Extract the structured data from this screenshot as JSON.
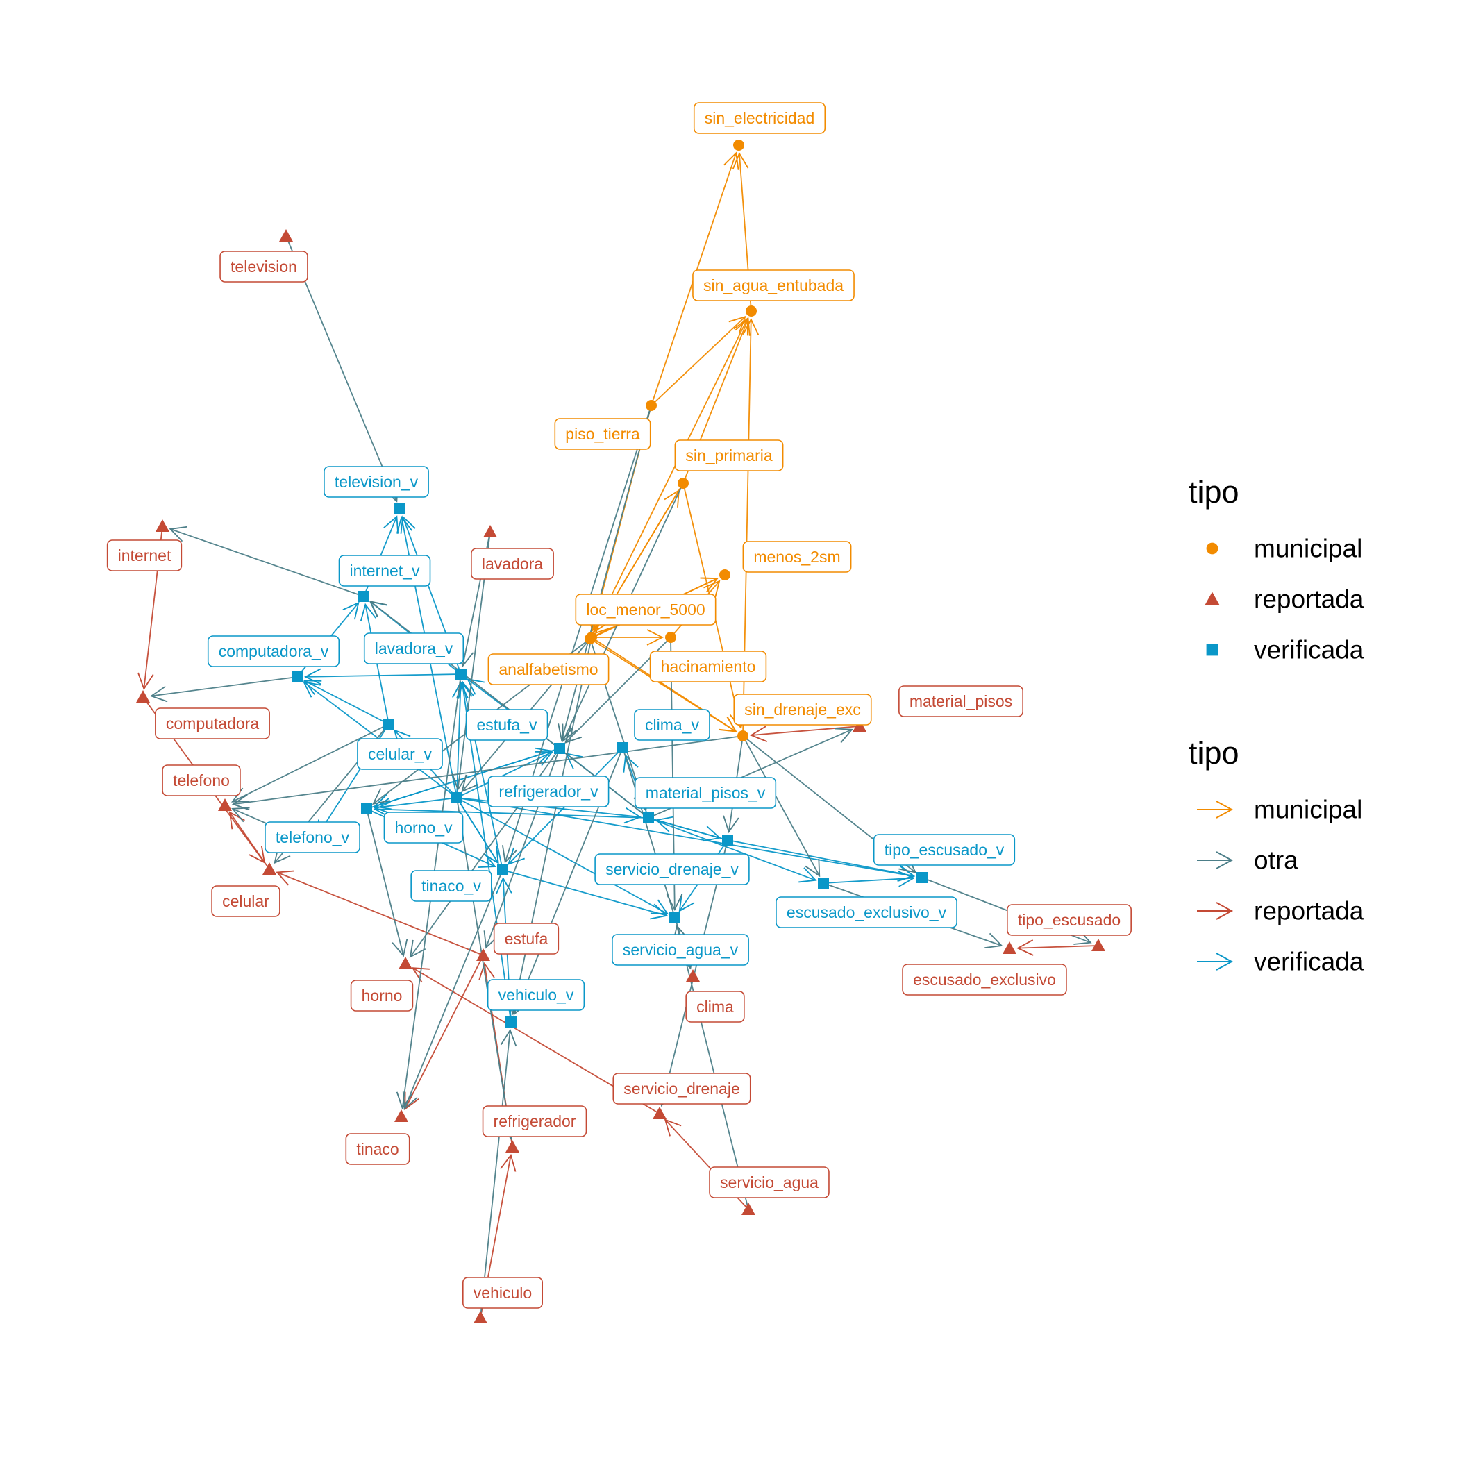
{
  "colors": {
    "municipal": "#F28B00",
    "reportada": "#C44A35",
    "verificada": "#0A97C8",
    "otra": "#4C7E88"
  },
  "legend": {
    "node_title": "tipo",
    "node_items": [
      {
        "label": "municipal",
        "key": "municipal",
        "shape": "circle"
      },
      {
        "label": "reportada",
        "key": "reportada",
        "shape": "triangle"
      },
      {
        "label": "verificada",
        "key": "verificada",
        "shape": "square"
      }
    ],
    "edge_title": "tipo",
    "edge_items": [
      {
        "label": "municipal",
        "key": "municipal"
      },
      {
        "label": "otra",
        "key": "otra"
      },
      {
        "label": "reportada",
        "key": "reportada"
      },
      {
        "label": "verificada",
        "key": "verificada"
      }
    ]
  },
  "nodes": [
    {
      "id": "sin_electricidad",
      "label": "sin_electricidad",
      "tipo": "municipal"
    },
    {
      "id": "sin_agua_entubada",
      "label": "sin_agua_entubada",
      "tipo": "municipal"
    },
    {
      "id": "piso_tierra",
      "label": "piso_tierra",
      "tipo": "municipal"
    },
    {
      "id": "sin_primaria",
      "label": "sin_primaria",
      "tipo": "municipal"
    },
    {
      "id": "menos_2sm",
      "label": "menos_2sm",
      "tipo": "municipal"
    },
    {
      "id": "loc_menor_5000",
      "label": "loc_menor_5000",
      "tipo": "municipal"
    },
    {
      "id": "analfabetismo",
      "label": "analfabetismo",
      "tipo": "municipal"
    },
    {
      "id": "hacinamiento",
      "label": "hacinamiento",
      "tipo": "municipal"
    },
    {
      "id": "sin_drenaje_exc",
      "label": "sin_drenaje_exc",
      "tipo": "municipal"
    },
    {
      "id": "television",
      "label": "television",
      "tipo": "reportada"
    },
    {
      "id": "internet",
      "label": "internet",
      "tipo": "reportada"
    },
    {
      "id": "lavadora",
      "label": "lavadora",
      "tipo": "reportada"
    },
    {
      "id": "computadora",
      "label": "computadora",
      "tipo": "reportada"
    },
    {
      "id": "telefono",
      "label": "telefono",
      "tipo": "reportada"
    },
    {
      "id": "celular",
      "label": "celular",
      "tipo": "reportada"
    },
    {
      "id": "horno",
      "label": "horno",
      "tipo": "reportada"
    },
    {
      "id": "estufa",
      "label": "estufa",
      "tipo": "reportada"
    },
    {
      "id": "tinaco",
      "label": "tinaco",
      "tipo": "reportada"
    },
    {
      "id": "refrigerador",
      "label": "refrigerador",
      "tipo": "reportada"
    },
    {
      "id": "vehiculo",
      "label": "vehiculo",
      "tipo": "reportada"
    },
    {
      "id": "clima",
      "label": "clima",
      "tipo": "reportada"
    },
    {
      "id": "servicio_drenaje",
      "label": "servicio_drenaje",
      "tipo": "reportada"
    },
    {
      "id": "servicio_agua",
      "label": "servicio_agua",
      "tipo": "reportada"
    },
    {
      "id": "material_pisos",
      "label": "material_pisos",
      "tipo": "reportada"
    },
    {
      "id": "tipo_escusado",
      "label": "tipo_escusado",
      "tipo": "reportada"
    },
    {
      "id": "escusado_exclusivo",
      "label": "escusado_exclusivo",
      "tipo": "reportada"
    },
    {
      "id": "television_v",
      "label": "television_v",
      "tipo": "verificada"
    },
    {
      "id": "internet_v",
      "label": "internet_v",
      "tipo": "verificada"
    },
    {
      "id": "computadora_v",
      "label": "computadora_v",
      "tipo": "verificada"
    },
    {
      "id": "lavadora_v",
      "label": "lavadora_v",
      "tipo": "verificada"
    },
    {
      "id": "celular_v",
      "label": "celular_v",
      "tipo": "verificada"
    },
    {
      "id": "estufa_v",
      "label": "estufa_v",
      "tipo": "verificada"
    },
    {
      "id": "clima_v",
      "label": "clima_v",
      "tipo": "verificada"
    },
    {
      "id": "refrigerador_v",
      "label": "refrigerador_v",
      "tipo": "verificada"
    },
    {
      "id": "material_pisos_v",
      "label": "material_pisos_v",
      "tipo": "verificada"
    },
    {
      "id": "horno_v",
      "label": "horno_v",
      "tipo": "verificada"
    },
    {
      "id": "telefono_v",
      "label": "telefono_v",
      "tipo": "verificada"
    },
    {
      "id": "tinaco_v",
      "label": "tinaco_v",
      "tipo": "verificada"
    },
    {
      "id": "servicio_drenaje_v",
      "label": "servicio_drenaje_v",
      "tipo": "verificada"
    },
    {
      "id": "servicio_agua_v",
      "label": "servicio_agua_v",
      "tipo": "verificada"
    },
    {
      "id": "tipo_escusado_v",
      "label": "tipo_escusado_v",
      "tipo": "verificada"
    },
    {
      "id": "escusado_exclusivo_v",
      "label": "escusado_exclusivo_v",
      "tipo": "verificada"
    },
    {
      "id": "vehiculo_v",
      "label": "vehiculo_v",
      "tipo": "verificada"
    }
  ],
  "edges": [
    {
      "from": "sin_agua_entubada",
      "to": "sin_electricidad",
      "tipo": "municipal"
    },
    {
      "from": "piso_tierra",
      "to": "sin_electricidad",
      "tipo": "municipal"
    },
    {
      "from": "piso_tierra",
      "to": "sin_agua_entubada",
      "tipo": "municipal"
    },
    {
      "from": "sin_primaria",
      "to": "sin_agua_entubada",
      "tipo": "municipal"
    },
    {
      "from": "sin_drenaje_exc",
      "to": "sin_agua_entubada",
      "tipo": "municipal"
    },
    {
      "from": "loc_menor_5000",
      "to": "sin_agua_entubada",
      "tipo": "municipal"
    },
    {
      "from": "piso_tierra",
      "to": "loc_menor_5000",
      "tipo": "municipal"
    },
    {
      "from": "sin_primaria",
      "to": "loc_menor_5000",
      "tipo": "municipal"
    },
    {
      "from": "loc_menor_5000",
      "to": "sin_primaria",
      "tipo": "municipal"
    },
    {
      "from": "loc_menor_5000",
      "to": "menos_2sm",
      "tipo": "municipal"
    },
    {
      "from": "analfabetismo",
      "to": "loc_menor_5000",
      "tipo": "municipal"
    },
    {
      "from": "analfabetismo",
      "to": "menos_2sm",
      "tipo": "municipal"
    },
    {
      "from": "hacinamiento",
      "to": "menos_2sm",
      "tipo": "municipal"
    },
    {
      "from": "analfabetismo",
      "to": "hacinamiento",
      "tipo": "municipal"
    },
    {
      "from": "analfabetismo",
      "to": "sin_drenaje_exc",
      "tipo": "municipal"
    },
    {
      "from": "sin_primaria",
      "to": "sin_drenaje_exc",
      "tipo": "municipal"
    },
    {
      "from": "loc_menor_5000",
      "to": "sin_drenaje_exc",
      "tipo": "municipal"
    },
    {
      "from": "internet",
      "to": "computadora",
      "tipo": "reportada"
    },
    {
      "from": "computadora",
      "to": "celular",
      "tipo": "reportada"
    },
    {
      "from": "celular",
      "to": "telefono",
      "tipo": "reportada"
    },
    {
      "from": "estufa",
      "to": "celular",
      "tipo": "reportada"
    },
    {
      "from": "estufa",
      "to": "tinaco",
      "tipo": "reportada"
    },
    {
      "from": "refrigerador",
      "to": "estufa",
      "tipo": "reportada"
    },
    {
      "from": "vehiculo",
      "to": "refrigerador",
      "tipo": "reportada"
    },
    {
      "from": "servicio_agua",
      "to": "servicio_drenaje",
      "tipo": "reportada"
    },
    {
      "from": "servicio_drenaje",
      "to": "horno",
      "tipo": "reportada"
    },
    {
      "from": "tipo_escusado",
      "to": "escusado_exclusivo",
      "tipo": "reportada"
    },
    {
      "from": "material_pisos",
      "to": "sin_drenaje_exc",
      "tipo": "reportada"
    },
    {
      "from": "internet_v",
      "to": "television_v",
      "tipo": "verificada"
    },
    {
      "from": "lavadora_v",
      "to": "television_v",
      "tipo": "verificada"
    },
    {
      "from": "refrigerador_v",
      "to": "television_v",
      "tipo": "verificada"
    },
    {
      "from": "computadora_v",
      "to": "internet_v",
      "tipo": "verificada"
    },
    {
      "from": "celular_v",
      "to": "internet_v",
      "tipo": "verificada"
    },
    {
      "from": "lavadora_v",
      "to": "internet_v",
      "tipo": "verificada"
    },
    {
      "from": "lavadora_v",
      "to": "computadora_v",
      "tipo": "verificada"
    },
    {
      "from": "celular_v",
      "to": "computadora_v",
      "tipo": "verificada"
    },
    {
      "from": "refrigerador_v",
      "to": "computadora_v",
      "tipo": "verificada"
    },
    {
      "from": "celular_v",
      "to": "telefono_v",
      "tipo": "verificada"
    },
    {
      "from": "refrigerador_v",
      "to": "celular_v",
      "tipo": "verificada"
    },
    {
      "from": "estufa_v",
      "to": "lavadora_v",
      "tipo": "verificada"
    },
    {
      "from": "refrigerador_v",
      "to": "lavadora_v",
      "tipo": "verificada"
    },
    {
      "from": "tinaco_v",
      "to": "lavadora_v",
      "tipo": "verificada"
    },
    {
      "from": "vehiculo_v",
      "to": "lavadora_v",
      "tipo": "verificada"
    },
    {
      "from": "horno_v",
      "to": "estufa_v",
      "tipo": "verificada"
    },
    {
      "from": "refrigerador_v",
      "to": "estufa_v",
      "tipo": "verificada"
    },
    {
      "from": "material_pisos_v",
      "to": "estufa_v",
      "tipo": "verificada"
    },
    {
      "from": "material_pisos_v",
      "to": "clima_v",
      "tipo": "verificada"
    },
    {
      "from": "refrigerador_v",
      "to": "horno_v",
      "tipo": "verificada"
    },
    {
      "from": "estufa_v",
      "to": "horno_v",
      "tipo": "verificada"
    },
    {
      "from": "material_pisos_v",
      "to": "horno_v",
      "tipo": "verificada"
    },
    {
      "from": "refrigerador_v",
      "to": "tinaco_v",
      "tipo": "verificada"
    },
    {
      "from": "clima_v",
      "to": "tinaco_v",
      "tipo": "verificada"
    },
    {
      "from": "horno_v",
      "to": "tinaco_v",
      "tipo": "verificada"
    },
    {
      "from": "refrigerador_v",
      "to": "material_pisos_v",
      "tipo": "verificada"
    },
    {
      "from": "servicio_drenaje_v",
      "to": "material_pisos_v",
      "tipo": "verificada"
    },
    {
      "from": "refrigerador_v",
      "to": "servicio_agua_v",
      "tipo": "verificada"
    },
    {
      "from": "material_pisos_v",
      "to": "servicio_drenaje_v",
      "tipo": "verificada"
    },
    {
      "from": "servicio_drenaje_v",
      "to": "servicio_agua_v",
      "tipo": "verificada"
    },
    {
      "from": "tinaco_v",
      "to": "servicio_agua_v",
      "tipo": "verificada"
    },
    {
      "from": "material_pisos_v",
      "to": "escusado_exclusivo_v",
      "tipo": "verificada"
    },
    {
      "from": "servicio_drenaje_v",
      "to": "tipo_escusado_v",
      "tipo": "verificada"
    },
    {
      "from": "escusado_exclusivo_v",
      "to": "tipo_escusado_v",
      "tipo": "verificada"
    },
    {
      "from": "refrigerador_v",
      "to": "tipo_escusado_v",
      "tipo": "verificada"
    },
    {
      "from": "refrigerador_v",
      "to": "tinaco_v",
      "tipo": "verificada"
    },
    {
      "from": "vehiculo_v",
      "to": "tinaco_v",
      "tipo": "verificada"
    },
    {
      "from": "television",
      "to": "television_v",
      "tipo": "otra"
    },
    {
      "from": "internet_v",
      "to": "internet",
      "tipo": "otra"
    },
    {
      "from": "material_pisos_v",
      "to": "internet_v",
      "tipo": "otra"
    },
    {
      "from": "computadora_v",
      "to": "computadora",
      "tipo": "otra"
    },
    {
      "from": "lavadora",
      "to": "lavadora_v",
      "tipo": "otra"
    },
    {
      "from": "lavadora",
      "to": "refrigerador_v",
      "tipo": "otra"
    },
    {
      "from": "celular_v",
      "to": "telefono",
      "tipo": "otra"
    },
    {
      "from": "telefono_v",
      "to": "telefono",
      "tipo": "otra"
    },
    {
      "from": "celular_v",
      "to": "celular",
      "tipo": "otra"
    },
    {
      "from": "horno_v",
      "to": "horno",
      "tipo": "otra"
    },
    {
      "from": "estufa_v",
      "to": "estufa",
      "tipo": "otra"
    },
    {
      "from": "tinaco_v",
      "to": "tinaco",
      "tipo": "otra"
    },
    {
      "from": "refrigerador_v",
      "to": "refrigerador",
      "tipo": "otra"
    },
    {
      "from": "vehiculo",
      "to": "vehiculo_v",
      "tipo": "otra"
    },
    {
      "from": "clima_v",
      "to": "clima",
      "tipo": "otra"
    },
    {
      "from": "servicio_drenaje_v",
      "to": "servicio_drenaje",
      "tipo": "otra"
    },
    {
      "from": "servicio_agua",
      "to": "servicio_agua_v",
      "tipo": "otra"
    },
    {
      "from": "material_pisos_v",
      "to": "material_pisos",
      "tipo": "otra"
    },
    {
      "from": "tipo_escusado_v",
      "to": "tipo_escusado",
      "tipo": "otra"
    },
    {
      "from": "escusado_exclusivo_v",
      "to": "escusado_exclusivo",
      "tipo": "otra"
    },
    {
      "from": "sin_drenaje_exc",
      "to": "escusado_exclusivo_v",
      "tipo": "otra"
    },
    {
      "from": "sin_drenaje_exc",
      "to": "tipo_escusado_v",
      "tipo": "otra"
    },
    {
      "from": "sin_drenaje_exc",
      "to": "servicio_drenaje_v",
      "tipo": "otra"
    },
    {
      "from": "sin_drenaje_exc",
      "to": "telefono",
      "tipo": "otra"
    },
    {
      "from": "loc_menor_5000",
      "to": "refrigerador_v",
      "tipo": "otra"
    },
    {
      "from": "loc_menor_5000",
      "to": "material_pisos_v",
      "tipo": "otra"
    },
    {
      "from": "loc_menor_5000",
      "to": "horno_v",
      "tipo": "otra"
    },
    {
      "from": "piso_tierra",
      "to": "estufa_v",
      "tipo": "otra"
    },
    {
      "from": "piso_tierra",
      "to": "tinaco_v",
      "tipo": "otra"
    },
    {
      "from": "sin_primaria",
      "to": "estufa_v",
      "tipo": "otra"
    },
    {
      "from": "hacinamiento",
      "to": "servicio_agua_v",
      "tipo": "otra"
    },
    {
      "from": "hacinamiento",
      "to": "estufa_v",
      "tipo": "otra"
    },
    {
      "from": "analfabetismo",
      "to": "vehiculo_v",
      "tipo": "otra"
    },
    {
      "from": "clima_v",
      "to": "vehiculo_v",
      "tipo": "otra"
    },
    {
      "from": "estufa_v",
      "to": "horno",
      "tipo": "otra"
    },
    {
      "from": "lavadora_v",
      "to": "tinaco",
      "tipo": "otra"
    }
  ]
}
